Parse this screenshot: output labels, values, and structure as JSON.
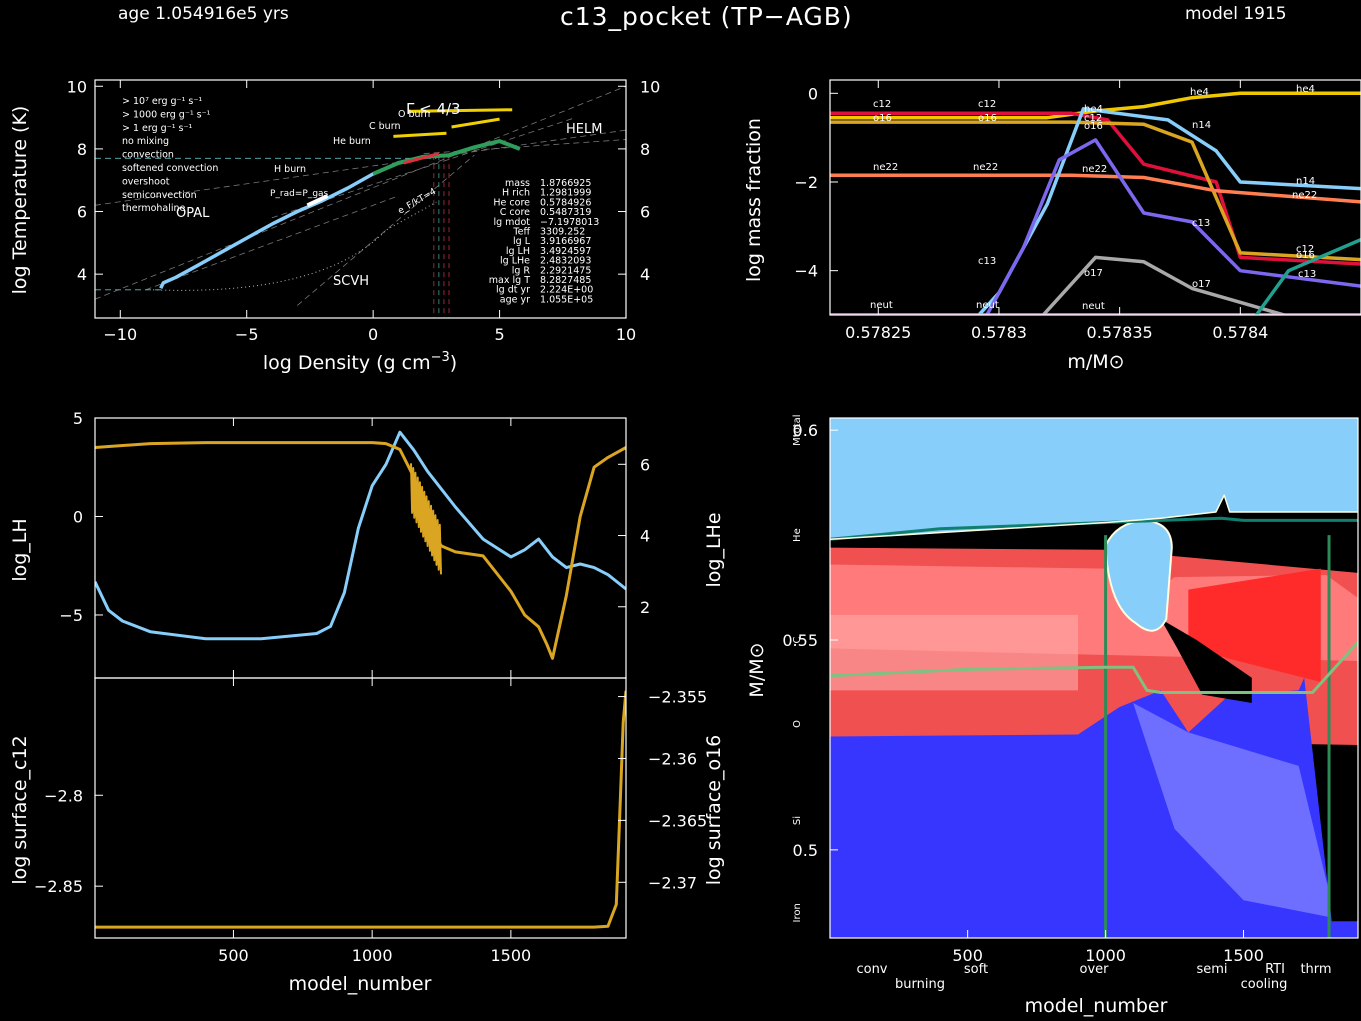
{
  "header": {
    "age": "age 1.054916e5 yrs",
    "title": "c13_pocket (TP−AGB)",
    "model": "model 1915"
  },
  "colors": {
    "bg": "#000000",
    "lh": "#daa520",
    "lhe": "#87cefa",
    "trho_track": "#87cefa",
    "h": "#f0d000",
    "he4": "#f0c800",
    "c12": "#e0103c",
    "o16": "#daa520",
    "n14": "#87cefa",
    "ne22": "#ff7f50",
    "c13": "#7b68ee",
    "o17": "#a9a9a9",
    "neut": "#dda0dd",
    "kipp_conv": "#87cefa",
    "kipp_burn": "#ff5a5a",
    "kipp_cool": "#4f4fff",
    "kipp_he": "#0f7f70",
    "kipp_o": "#80c080",
    "kipp_star": "#2e8b57"
  },
  "chart_data": [
    {
      "type": "line",
      "name": "trho",
      "xlabel": "log Density (g cm",
      "xlabel_sup": "−3",
      "xlabel_end": ")",
      "ylabel": "log Temperature (K)",
      "xlim": [
        -11,
        10
      ],
      "ylim": [
        2.6,
        10.2
      ],
      "xticks": [
        -10,
        -5,
        0,
        5,
        10
      ],
      "xtick_labels": [
        "−10",
        "−5",
        "0",
        "5",
        "10"
      ],
      "yticks": [
        4,
        6,
        8,
        10
      ],
      "legend": [
        {
          "text": "> 10⁷ erg g⁻¹ s⁻¹",
          "color": "#ff3030"
        },
        {
          "text": "> 1000 erg g⁻¹ s⁻¹",
          "color": "#ff7f50"
        },
        {
          "text": "> 1 erg g⁻¹ s⁻¹",
          "color": "#f0d000"
        },
        {
          "text": "no mixing",
          "color": "#20a060"
        },
        {
          "text": "convection",
          "color": "#87cefa"
        },
        {
          "text": "softened convection",
          "color": "#ffffff"
        },
        {
          "text": "overshoot",
          "color": "#ffffff"
        },
        {
          "text": "semiconvection",
          "color": "#a9a9c9"
        },
        {
          "text": "thermohaline",
          "color": "#c080ff"
        }
      ],
      "region_labels": [
        "OPAL",
        "SCVH",
        "HELM",
        "H burn",
        "He burn",
        "C burn",
        "O burn",
        "Γ < 4/3",
        "P_rad=P_gas",
        "e_F/kT=4"
      ],
      "info": [
        [
          "mass",
          "1.8766925"
        ],
        [
          "H rich",
          "1.2981999"
        ],
        [
          "He core",
          "0.5784926"
        ],
        [
          "C core",
          "0.5487319"
        ],
        [
          "lg mdot",
          "−7.1978013"
        ],
        [
          "Teff",
          "3309.252"
        ],
        [
          "lg L",
          "3.9166967"
        ],
        [
          "lg LH",
          "3.4924597"
        ],
        [
          "lg LHe",
          "2.4832093"
        ],
        [
          "lg R",
          "2.2921475"
        ],
        [
          "max lg T",
          "8.2827485"
        ],
        [
          "lg dt yr",
          "2.224E+00"
        ],
        [
          "age yr",
          "1.055E+05"
        ]
      ],
      "track": [
        [
          -8.4,
          3.55
        ],
        [
          -8.3,
          3.72
        ],
        [
          -7.8,
          3.9
        ],
        [
          -7,
          4.25
        ],
        [
          -6,
          4.7
        ],
        [
          -5,
          5.15
        ],
        [
          -4,
          5.6
        ],
        [
          -3,
          6.0
        ],
        [
          -2,
          6.35
        ],
        [
          -1,
          6.75
        ],
        [
          0,
          7.2
        ],
        [
          1,
          7.55
        ],
        [
          2,
          7.75
        ],
        [
          3,
          7.8
        ],
        [
          4,
          8.05
        ],
        [
          5,
          8.25
        ],
        [
          5.8,
          8.0
        ]
      ]
    },
    {
      "type": "line",
      "name": "abundances",
      "xlabel": "m/M⊙",
      "ylabel": "log mass fraction",
      "xlim": [
        0.57823,
        0.57845
      ],
      "ylim": [
        -5.0,
        0.3
      ],
      "xticks": [
        0.57825,
        0.5783,
        0.57835,
        0.5784
      ],
      "xtick_labels": [
        "0.57825",
        "0.5783",
        "0.57835",
        "0.5784"
      ],
      "yticks": [
        0,
        -2,
        -4
      ],
      "ytick_labels": [
        "0",
        "−2",
        "−4"
      ],
      "series": [
        {
          "name": "he4",
          "x": [
            0.57823,
            0.57832,
            0.57834,
            0.57836,
            0.57838,
            0.5784,
            0.57845
          ],
          "y": [
            -0.55,
            -0.55,
            -0.4,
            -0.3,
            -0.1,
            0.0,
            0.0
          ]
        },
        {
          "name": "c12",
          "x": [
            0.57823,
            0.57833,
            0.578345,
            0.57836,
            0.57839,
            0.5784,
            0.57845
          ],
          "y": [
            -0.45,
            -0.45,
            -0.6,
            -1.6,
            -2.0,
            -3.7,
            -3.85
          ]
        },
        {
          "name": "o16",
          "x": [
            0.57823,
            0.57833,
            0.57836,
            0.57838,
            0.5784,
            0.57845
          ],
          "y": [
            -0.65,
            -0.65,
            -0.7,
            -1.1,
            -3.6,
            -3.75
          ]
        },
        {
          "name": "ne22",
          "x": [
            0.57823,
            0.57833,
            0.57836,
            0.57839,
            0.57845
          ],
          "y": [
            -1.85,
            -1.85,
            -1.9,
            -2.2,
            -2.45
          ]
        },
        {
          "name": "n14",
          "x": [
            0.57823,
            0.578275,
            0.5783,
            0.57832,
            0.578335,
            0.57837,
            0.57839,
            0.5784,
            0.57845
          ],
          "y": [
            -6,
            -6,
            -4.5,
            -2.5,
            -0.35,
            -0.6,
            -1.3,
            -2.0,
            -2.15
          ]
        },
        {
          "name": "c13",
          "x": [
            0.57823,
            0.57829,
            0.57831,
            0.578325,
            0.57834,
            0.57836,
            0.57838,
            0.5784,
            0.57845
          ],
          "y": [
            -6,
            -5.5,
            -3.5,
            -1.5,
            -1.05,
            -2.7,
            -2.9,
            -4.0,
            -4.35
          ]
        },
        {
          "name": "o17",
          "x": [
            0.57823,
            0.57831,
            0.57834,
            0.57836,
            0.57838,
            0.57845
          ],
          "y": [
            -6,
            -5.5,
            -3.7,
            -3.8,
            -4.4,
            -5.5
          ]
        },
        {
          "name": "neut",
          "x": [
            0.57823,
            0.57845
          ],
          "y": [
            -5.0,
            -5.0
          ]
        },
        {
          "name": "h",
          "x": [
            0.5784,
            0.57842,
            0.57845
          ],
          "y": [
            -5.5,
            -4.0,
            -3.3
          ]
        }
      ],
      "labels_left": [
        "c12",
        "c12",
        "o16",
        "o16",
        "ne22",
        "ne22",
        "neut",
        "neut",
        "c13",
        "o17"
      ],
      "labels_right": [
        "he4",
        "he4",
        "he4",
        "c12",
        "o16",
        "n14",
        "n14",
        "ne22",
        "ne22",
        "c13",
        "c13",
        "o16",
        "o17",
        "c12",
        "neut"
      ]
    },
    {
      "type": "line",
      "name": "lum_history",
      "ylabel_left": "log_LH",
      "ylabel_right": "log_LHe",
      "xlim": [
        1,
        1915
      ],
      "ylim_left": [
        -8.2,
        5
      ],
      "ylim_right": [
        0.0,
        7.3
      ],
      "yticks_left": [
        5,
        0,
        -5
      ],
      "ytick_labels_left": [
        "5",
        "0",
        "−5"
      ],
      "yticks_right": [
        6,
        4,
        2
      ],
      "series": [
        {
          "name": "log_LH",
          "x": [
            1,
            200,
            400,
            600,
            800,
            1000,
            1050,
            1100,
            1150,
            1180,
            1200,
            1250,
            1300,
            1400,
            1500,
            1550,
            1600,
            1630,
            1650,
            1700,
            1750,
            1800,
            1850,
            1915
          ],
          "y": [
            3.5,
            3.7,
            3.75,
            3.75,
            3.75,
            3.75,
            3.7,
            3.4,
            2.0,
            0.5,
            -0.5,
            -1.5,
            -1.8,
            -2.0,
            -3.8,
            -5.0,
            -5.6,
            -6.5,
            -7.2,
            -4.0,
            0.0,
            2.5,
            3.0,
            3.5
          ]
        },
        {
          "name": "log_LHe",
          "x": [
            1,
            50,
            100,
            200,
            400,
            600,
            800,
            850,
            900,
            950,
            1000,
            1050,
            1100,
            1150,
            1200,
            1300,
            1400,
            1500,
            1550,
            1600,
            1650,
            1700,
            1750,
            1800,
            1850,
            1915
          ],
          "y": [
            2.7,
            1.9,
            1.6,
            1.3,
            1.1,
            1.1,
            1.25,
            1.45,
            2.4,
            4.2,
            5.4,
            6.0,
            6.9,
            6.4,
            5.8,
            4.8,
            3.9,
            3.4,
            3.6,
            3.9,
            3.4,
            3.1,
            3.2,
            3.1,
            2.9,
            2.5
          ]
        }
      ]
    },
    {
      "type": "line",
      "name": "surface_history",
      "xlabel": "model_number",
      "ylabel_left": "log surface_c12",
      "ylabel_right": "log surface_o16",
      "xlim": [
        1,
        1915
      ],
      "ylim_left": [
        -2.8785,
        -2.7355
      ],
      "ylim_right": [
        -2.3745,
        -2.3535
      ],
      "xticks": [
        500,
        1000,
        1500
      ],
      "yticks_left": [
        -2.8,
        -2.85
      ],
      "ytick_labels_left": [
        "−2.8",
        "−2.85"
      ],
      "yticks_right": [
        -2.355,
        -2.36,
        -2.365,
        -2.37
      ],
      "ytick_labels_right": [
        "−2.355",
        "−2.36",
        "−2.365",
        "−2.37"
      ],
      "series": [
        {
          "name": "log surface_c12",
          "x": [
            1,
            1500,
            1800,
            1850,
            1880,
            1895,
            1905,
            1915
          ],
          "y": [
            -2.8725,
            -2.8725,
            -2.8725,
            -2.872,
            -2.86,
            -2.8,
            -2.76,
            -2.7425
          ]
        }
      ]
    },
    {
      "type": "area",
      "name": "kippenhahn",
      "xlabel": "model_number",
      "ylabel": "M/M⊙",
      "xlim": [
        1,
        1915
      ],
      "ylim": [
        0.479,
        0.6029
      ],
      "xticks": [
        500,
        1000,
        1500
      ],
      "yticks": [
        0.5,
        0.55,
        0.6
      ],
      "side_labels": [
        {
          "text": "Mtotal",
          "color": "#a9a9a9",
          "y": 0.6
        },
        {
          "text": "He",
          "color": "#0f7f70",
          "y": 0.575
        },
        {
          "text": "C",
          "color": "#a9a9a9",
          "y": 0.55
        },
        {
          "text": "O",
          "color": "#80c080",
          "y": 0.53
        },
        {
          "text": "Si",
          "color": "#c0a0ff",
          "y": 0.507
        },
        {
          "text": "Iron",
          "color": "#ff3030",
          "y": 0.485
        }
      ],
      "legend": [
        {
          "text": "conv",
          "color": "#87cefa"
        },
        {
          "text": "burning",
          "color": "#ff5a5a"
        },
        {
          "text": "soft",
          "color": "#ffffff"
        },
        {
          "text": "over",
          "color": "#ffffff"
        },
        {
          "text": "semi",
          "color": "#a9a9a9"
        },
        {
          "text": "cooling",
          "color": "#4f4fff"
        },
        {
          "text": "RTI",
          "color": "#ff3030"
        },
        {
          "text": "thrm",
          "color": "#c080ff"
        }
      ],
      "he_core": {
        "x": [
          1,
          400,
          800,
          1200,
          1420,
          1500,
          1800,
          1915
        ],
        "y": [
          0.574,
          0.5765,
          0.5775,
          0.5785,
          0.579,
          0.5785,
          0.5785,
          0.5785
        ]
      },
      "c_core": {
        "x": [
          1,
          500,
          1000,
          1100,
          1150,
          1200,
          1500,
          1750,
          1915
        ],
        "y": [
          0.5415,
          0.543,
          0.5435,
          0.5435,
          0.538,
          0.5375,
          0.5375,
          0.5375,
          0.5495
        ]
      },
      "conv_top": {
        "x": [
          1,
          500,
          1000,
          1200,
          1400,
          1430,
          1450,
          1500,
          1915
        ],
        "y": [
          0.574,
          0.576,
          0.578,
          0.579,
          0.5805,
          0.5845,
          0.5805,
          0.5805,
          0.5805
        ]
      },
      "star_lines_x": [
        1000,
        1810
      ]
    }
  ]
}
